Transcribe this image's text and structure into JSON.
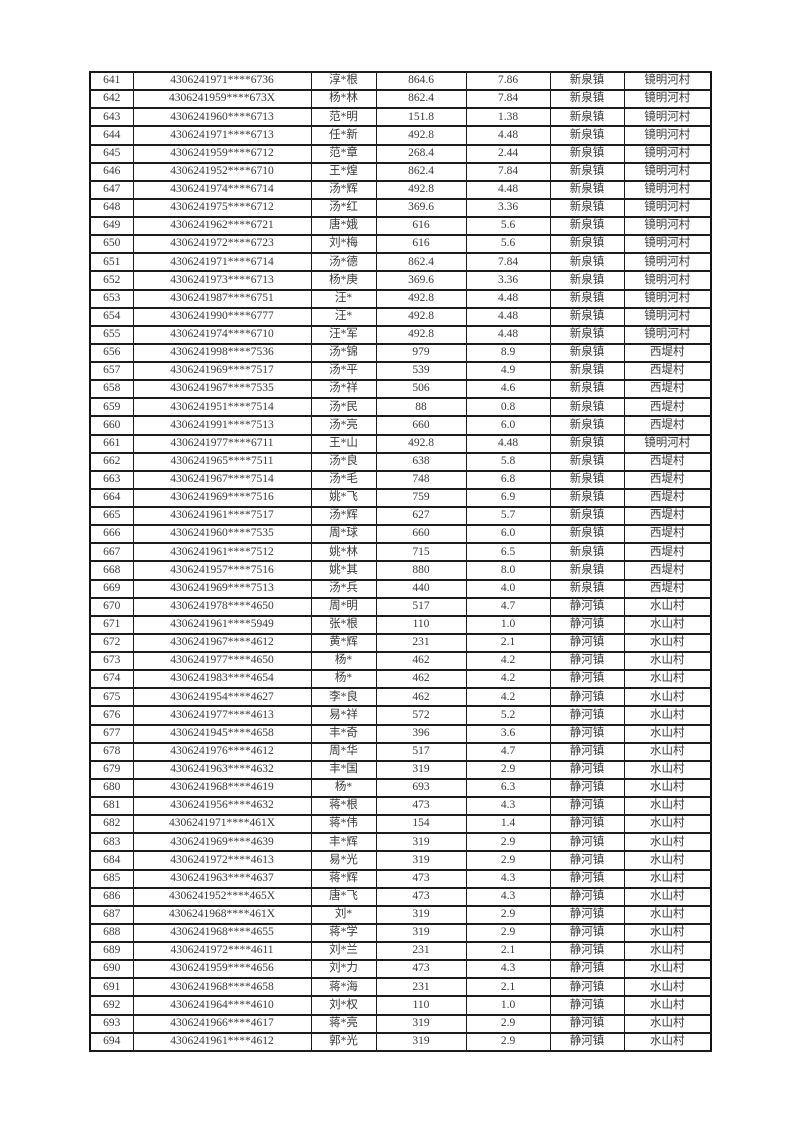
{
  "page": {
    "background_color": "#ffffff"
  },
  "table": {
    "text_color": "#3a3a3a",
    "border_color": "#1c1c1c",
    "outer_border_color": "#121212",
    "rows": [
      [
        "641",
        "4306241971****6736",
        "淳*根",
        "864.6",
        "7.86",
        "新泉镇",
        "镜明河村"
      ],
      [
        "642",
        "4306241959****673X",
        "杨*林",
        "862.4",
        "7.84",
        "新泉镇",
        "镜明河村"
      ],
      [
        "643",
        "4306241960****6713",
        "范*明",
        "151.8",
        "1.38",
        "新泉镇",
        "镜明河村"
      ],
      [
        "644",
        "4306241971****6713",
        "任*新",
        "492.8",
        "4.48",
        "新泉镇",
        "镜明河村"
      ],
      [
        "645",
        "4306241959****6712",
        "范*章",
        "268.4",
        "2.44",
        "新泉镇",
        "镜明河村"
      ],
      [
        "646",
        "4306241952****6710",
        "王*煌",
        "862.4",
        "7.84",
        "新泉镇",
        "镜明河村"
      ],
      [
        "647",
        "4306241974****6714",
        "汤*辉",
        "492.8",
        "4.48",
        "新泉镇",
        "镜明河村"
      ],
      [
        "648",
        "4306241975****6712",
        "汤*红",
        "369.6",
        "3.36",
        "新泉镇",
        "镜明河村"
      ],
      [
        "649",
        "4306241962****6721",
        "唐*娥",
        "616",
        "5.6",
        "新泉镇",
        "镜明河村"
      ],
      [
        "650",
        "4306241972****6723",
        "刘*梅",
        "616",
        "5.6",
        "新泉镇",
        "镜明河村"
      ],
      [
        "651",
        "4306241971****6714",
        "汤*德",
        "862.4",
        "7.84",
        "新泉镇",
        "镜明河村"
      ],
      [
        "652",
        "4306241973****6713",
        "杨*庚",
        "369.6",
        "3.36",
        "新泉镇",
        "镜明河村"
      ],
      [
        "653",
        "4306241987****6751",
        "汪*",
        "492.8",
        "4.48",
        "新泉镇",
        "镜明河村"
      ],
      [
        "654",
        "4306241990****6777",
        "汪*",
        "492.8",
        "4.48",
        "新泉镇",
        "镜明河村"
      ],
      [
        "655",
        "4306241974****6710",
        "汪*军",
        "492.8",
        "4.48",
        "新泉镇",
        "镜明河村"
      ],
      [
        "656",
        "4306241998****7536",
        "汤*锦",
        "979",
        "8.9",
        "新泉镇",
        "西堤村"
      ],
      [
        "657",
        "4306241969****7517",
        "汤*平",
        "539",
        "4.9",
        "新泉镇",
        "西堤村"
      ],
      [
        "658",
        "4306241967****7535",
        "汤*祥",
        "506",
        "4.6",
        "新泉镇",
        "西堤村"
      ],
      [
        "659",
        "4306241951****7514",
        "汤*民",
        "88",
        "0.8",
        "新泉镇",
        "西堤村"
      ],
      [
        "660",
        "4306241991****7513",
        "汤*亮",
        "660",
        "6.0",
        "新泉镇",
        "西堤村"
      ],
      [
        "661",
        "4306241977****6711",
        "王*山",
        "492.8",
        "4.48",
        "新泉镇",
        "镜明河村"
      ],
      [
        "662",
        "4306241965****7511",
        "汤*良",
        "638",
        "5.8",
        "新泉镇",
        "西堤村"
      ],
      [
        "663",
        "4306241967****7514",
        "汤*毛",
        "748",
        "6.8",
        "新泉镇",
        "西堤村"
      ],
      [
        "664",
        "4306241969****7516",
        "姚*飞",
        "759",
        "6.9",
        "新泉镇",
        "西堤村"
      ],
      [
        "665",
        "4306241961****7517",
        "汤*辉",
        "627",
        "5.7",
        "新泉镇",
        "西堤村"
      ],
      [
        "666",
        "4306241960****7535",
        "周*球",
        "660",
        "6.0",
        "新泉镇",
        "西堤村"
      ],
      [
        "667",
        "4306241961****7512",
        "姚*林",
        "715",
        "6.5",
        "新泉镇",
        "西堤村"
      ],
      [
        "668",
        "4306241957****7516",
        "姚*其",
        "880",
        "8.0",
        "新泉镇",
        "西堤村"
      ],
      [
        "669",
        "4306241969****7513",
        "汤*兵",
        "440",
        "4.0",
        "新泉镇",
        "西堤村"
      ],
      [
        "670",
        "4306241978****4650",
        "周*明",
        "517",
        "4.7",
        "静河镇",
        "水山村"
      ],
      [
        "671",
        "4306241961****5949",
        "张*根",
        "110",
        "1.0",
        "静河镇",
        "水山村"
      ],
      [
        "672",
        "4306241967****4612",
        "黄*辉",
        "231",
        "2.1",
        "静河镇",
        "水山村"
      ],
      [
        "673",
        "4306241977****4650",
        "杨*",
        "462",
        "4.2",
        "静河镇",
        "水山村"
      ],
      [
        "674",
        "4306241983****4654",
        "杨*",
        "462",
        "4.2",
        "静河镇",
        "水山村"
      ],
      [
        "675",
        "4306241954****4627",
        "李*良",
        "462",
        "4.2",
        "静河镇",
        "水山村"
      ],
      [
        "676",
        "4306241977****4613",
        "易*祥",
        "572",
        "5.2",
        "静河镇",
        "水山村"
      ],
      [
        "677",
        "4306241945****4658",
        "丰*奇",
        "396",
        "3.6",
        "静河镇",
        "水山村"
      ],
      [
        "678",
        "4306241976****4612",
        "周*华",
        "517",
        "4.7",
        "静河镇",
        "水山村"
      ],
      [
        "679",
        "4306241963****4632",
        "丰*国",
        "319",
        "2.9",
        "静河镇",
        "水山村"
      ],
      [
        "680",
        "4306241968****4619",
        "杨*",
        "693",
        "6.3",
        "静河镇",
        "水山村"
      ],
      [
        "681",
        "4306241956****4632",
        "蒋*根",
        "473",
        "4.3",
        "静河镇",
        "水山村"
      ],
      [
        "682",
        "4306241971****461X",
        "蒋*伟",
        "154",
        "1.4",
        "静河镇",
        "水山村"
      ],
      [
        "683",
        "4306241969****4639",
        "丰*辉",
        "319",
        "2.9",
        "静河镇",
        "水山村"
      ],
      [
        "684",
        "4306241972****4613",
        "易*光",
        "319",
        "2.9",
        "静河镇",
        "水山村"
      ],
      [
        "685",
        "4306241963****4637",
        "蒋*辉",
        "473",
        "4.3",
        "静河镇",
        "水山村"
      ],
      [
        "686",
        "4306241952****465X",
        "唐*飞",
        "473",
        "4.3",
        "静河镇",
        "水山村"
      ],
      [
        "687",
        "4306241968****461X",
        "刘*",
        "319",
        "2.9",
        "静河镇",
        "水山村"
      ],
      [
        "688",
        "4306241968****4655",
        "蒋*学",
        "319",
        "2.9",
        "静河镇",
        "水山村"
      ],
      [
        "689",
        "4306241972****4611",
        "刘*兰",
        "231",
        "2.1",
        "静河镇",
        "水山村"
      ],
      [
        "690",
        "4306241959****4656",
        "刘*力",
        "473",
        "4.3",
        "静河镇",
        "水山村"
      ],
      [
        "691",
        "4306241968****4658",
        "蒋*海",
        "231",
        "2.1",
        "静河镇",
        "水山村"
      ],
      [
        "692",
        "4306241964****4610",
        "刘*权",
        "110",
        "1.0",
        "静河镇",
        "水山村"
      ],
      [
        "693",
        "4306241966****4617",
        "蒋*亮",
        "319",
        "2.9",
        "静河镇",
        "水山村"
      ],
      [
        "694",
        "4306241961****4612",
        "郭*光",
        "319",
        "2.9",
        "静河镇",
        "水山村"
      ]
    ]
  }
}
